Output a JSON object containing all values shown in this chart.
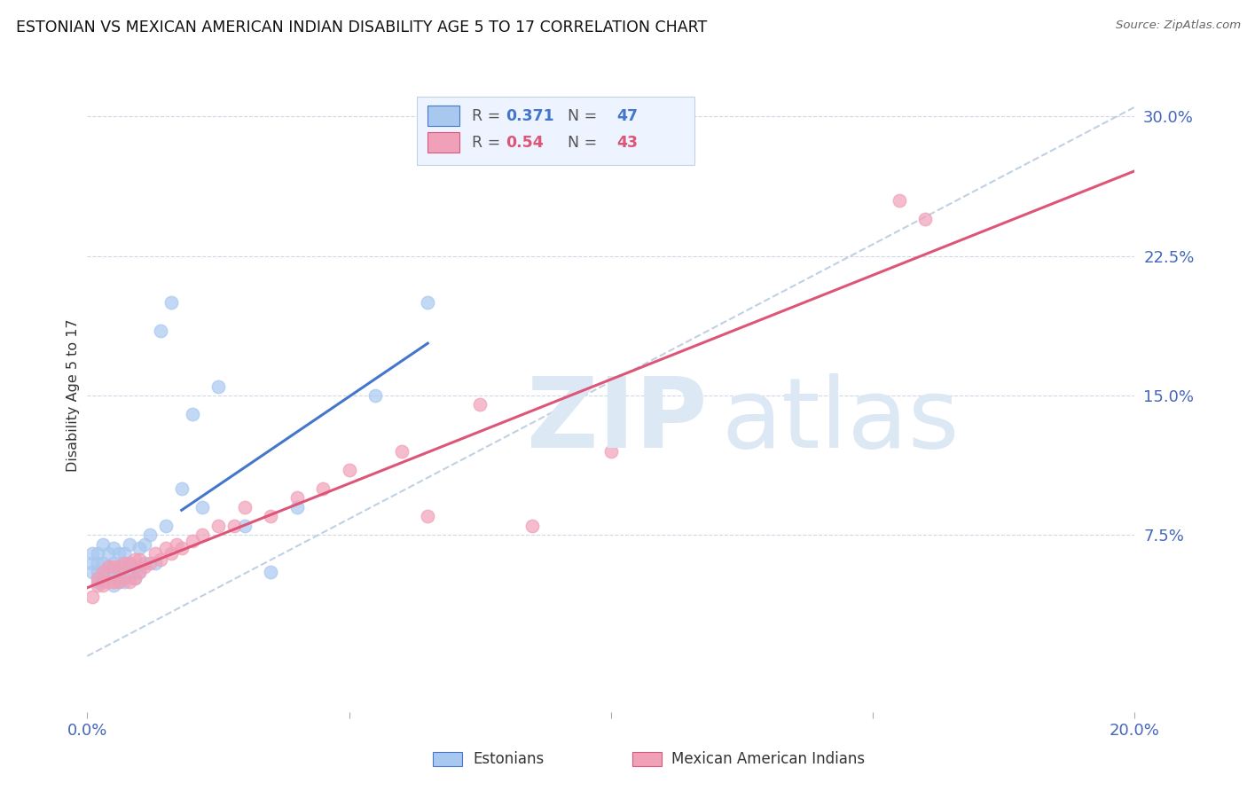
{
  "title": "ESTONIAN VS MEXICAN AMERICAN INDIAN DISABILITY AGE 5 TO 17 CORRELATION CHART",
  "source": "Source: ZipAtlas.com",
  "ylabel": "Disability Age 5 to 17",
  "xlim": [
    0.0,
    0.2
  ],
  "ylim": [
    -0.02,
    0.32
  ],
  "yticks": [
    0.075,
    0.15,
    0.225,
    0.3
  ],
  "ytick_labels": [
    "7.5%",
    "15.0%",
    "22.5%",
    "30.0%"
  ],
  "xticks": [
    0.0,
    0.05,
    0.1,
    0.15,
    0.2
  ],
  "xtick_labels": [
    "0.0%",
    "",
    "",
    "",
    "20.0%"
  ],
  "background_color": "#ffffff",
  "grid_color": "#d0d8e8",
  "blue_scatter_color": "#a8c8f0",
  "pink_scatter_color": "#f0a0b8",
  "blue_line_color": "#4477cc",
  "pink_line_color": "#dd5577",
  "dashed_line_color": "#b8cce0",
  "title_color": "#111111",
  "tick_label_color": "#4466bb",
  "R_blue": 0.371,
  "N_blue": 47,
  "R_pink": 0.54,
  "N_pink": 43,
  "estonians_x": [
    0.001,
    0.001,
    0.001,
    0.002,
    0.002,
    0.002,
    0.002,
    0.003,
    0.003,
    0.003,
    0.003,
    0.004,
    0.004,
    0.004,
    0.005,
    0.005,
    0.005,
    0.005,
    0.006,
    0.006,
    0.006,
    0.007,
    0.007,
    0.007,
    0.008,
    0.008,
    0.008,
    0.009,
    0.009,
    0.01,
    0.01,
    0.011,
    0.011,
    0.012,
    0.013,
    0.014,
    0.015,
    0.016,
    0.018,
    0.02,
    0.022,
    0.025,
    0.03,
    0.035,
    0.04,
    0.055,
    0.065
  ],
  "estonians_y": [
    0.055,
    0.06,
    0.065,
    0.05,
    0.055,
    0.06,
    0.065,
    0.05,
    0.055,
    0.06,
    0.07,
    0.055,
    0.058,
    0.065,
    0.048,
    0.055,
    0.06,
    0.068,
    0.05,
    0.055,
    0.065,
    0.05,
    0.058,
    0.065,
    0.055,
    0.06,
    0.07,
    0.052,
    0.058,
    0.055,
    0.068,
    0.06,
    0.07,
    0.075,
    0.06,
    0.185,
    0.08,
    0.2,
    0.1,
    0.14,
    0.09,
    0.155,
    0.08,
    0.055,
    0.09,
    0.15,
    0.2
  ],
  "mexican_x": [
    0.001,
    0.002,
    0.002,
    0.003,
    0.003,
    0.004,
    0.004,
    0.005,
    0.005,
    0.006,
    0.006,
    0.007,
    0.007,
    0.008,
    0.008,
    0.009,
    0.009,
    0.01,
    0.01,
    0.011,
    0.012,
    0.013,
    0.014,
    0.015,
    0.016,
    0.017,
    0.018,
    0.02,
    0.022,
    0.025,
    0.028,
    0.03,
    0.035,
    0.04,
    0.045,
    0.05,
    0.06,
    0.065,
    0.075,
    0.085,
    0.1,
    0.155,
    0.16
  ],
  "mexican_y": [
    0.042,
    0.048,
    0.052,
    0.048,
    0.055,
    0.05,
    0.058,
    0.05,
    0.058,
    0.05,
    0.058,
    0.052,
    0.06,
    0.05,
    0.06,
    0.052,
    0.062,
    0.055,
    0.062,
    0.058,
    0.06,
    0.065,
    0.062,
    0.068,
    0.065,
    0.07,
    0.068,
    0.072,
    0.075,
    0.08,
    0.08,
    0.09,
    0.085,
    0.095,
    0.1,
    0.11,
    0.12,
    0.085,
    0.145,
    0.08,
    0.12,
    0.255,
    0.245
  ],
  "watermark_color": "#dde8f5",
  "legend_box_color": "#eef4ff",
  "legend_border_color": "#c0d0e8",
  "blue_line_start_x": 0.018,
  "blue_line_end_x": 0.065,
  "pink_line_start_x": 0.0,
  "pink_line_end_x": 0.2
}
